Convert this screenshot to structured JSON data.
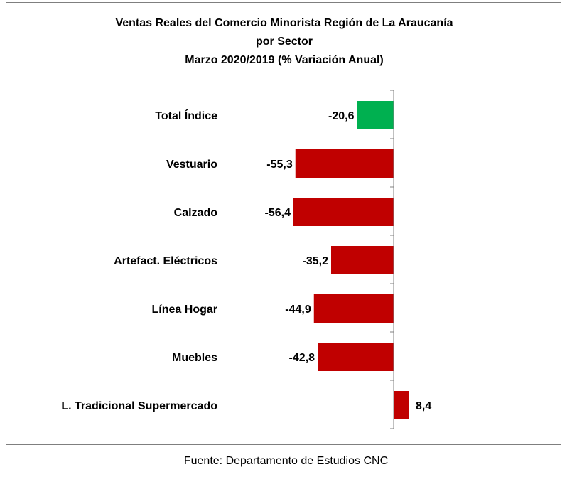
{
  "chart_data": {
    "type": "bar",
    "orientation": "horizontal",
    "title_lines": [
      "Ventas Reales del Comercio Minorista  Región de La Araucanía",
      "por Sector",
      "Marzo 2020/2019 (% Variación Anual)"
    ],
    "categories": [
      "Total Índice",
      "Vestuario",
      "Calzado",
      "Artefact. Eléctricos",
      "Línea Hogar",
      "Muebles",
      "L. Tradicional Supermercado"
    ],
    "values": [
      -20.6,
      -55.3,
      -56.4,
      -35.2,
      -44.9,
      -42.8,
      8.4
    ],
    "value_labels": [
      "-20,6",
      "-55,3",
      "-56,4",
      "-35,2",
      "-44,9",
      "-42,8",
      "8,4"
    ],
    "colors": [
      "#00b050",
      "#c00000",
      "#c00000",
      "#c00000",
      "#c00000",
      "#c00000",
      "#c00000"
    ],
    "xlim": [
      -60,
      10
    ],
    "grid": false,
    "legend": "none"
  },
  "source": "Fuente: Departamento de Estudios CNC"
}
